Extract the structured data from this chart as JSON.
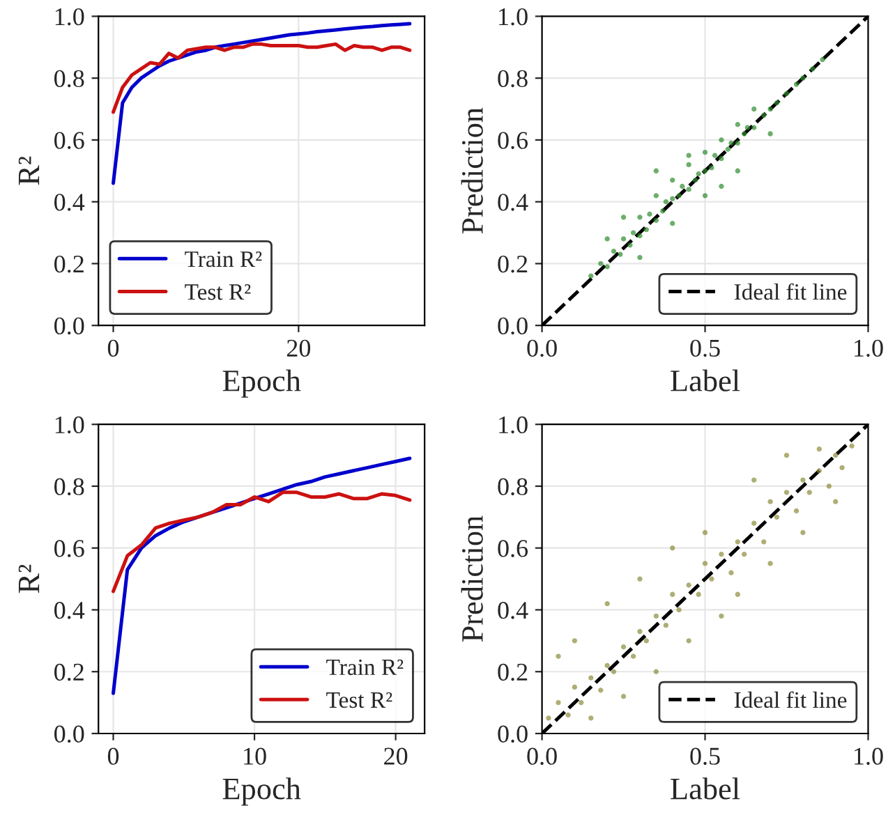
{
  "chart_data": [
    {
      "type": "line",
      "xlabel": "Epoch",
      "ylabel": "R²",
      "x": [
        0,
        1,
        2,
        3,
        4,
        5,
        6,
        7,
        8,
        9,
        10,
        11,
        12,
        13,
        14,
        15,
        16,
        17,
        18,
        19,
        20,
        21,
        22,
        23,
        24,
        25,
        26,
        27,
        28,
        29,
        30,
        31,
        32
      ],
      "series": [
        {
          "name": "Train R²",
          "color": "#0000cc",
          "values": [
            0.46,
            0.72,
            0.77,
            0.8,
            0.82,
            0.84,
            0.855,
            0.865,
            0.875,
            0.885,
            0.89,
            0.9,
            0.905,
            0.91,
            0.915,
            0.92,
            0.925,
            0.93,
            0.935,
            0.94,
            0.943,
            0.946,
            0.95,
            0.953,
            0.956,
            0.959,
            0.962,
            0.965,
            0.967,
            0.97,
            0.972,
            0.974,
            0.976
          ]
        },
        {
          "name": "Test R²",
          "color": "#cc1111",
          "values": [
            0.69,
            0.77,
            0.81,
            0.83,
            0.85,
            0.845,
            0.88,
            0.865,
            0.89,
            0.895,
            0.9,
            0.9,
            0.89,
            0.9,
            0.9,
            0.91,
            0.91,
            0.905,
            0.905,
            0.905,
            0.905,
            0.9,
            0.9,
            0.905,
            0.91,
            0.89,
            0.905,
            0.9,
            0.9,
            0.89,
            0.9,
            0.9,
            0.89
          ]
        }
      ],
      "xlim": [
        -1.6,
        33.6
      ],
      "xticks": [
        0,
        20
      ],
      "ylim": [
        0,
        1
      ],
      "yticks": [
        {
          "value": 0,
          "label": "0.0"
        },
        {
          "value": 0.2,
          "label": "0.2"
        },
        {
          "value": 0.4,
          "label": "0.4"
        },
        {
          "value": 0.6,
          "label": "0.6"
        },
        {
          "value": 0.8,
          "label": "0.8"
        },
        {
          "value": 1,
          "label": "1.0"
        }
      ],
      "grid": true,
      "legend": "bottom left",
      "marker": "none",
      "line_style": "solid"
    },
    {
      "type": "scatter",
      "xlabel": "Label",
      "ylabel": "Prediction",
      "series": [
        {
          "type": "scatter",
          "marker": "circle",
          "color": "#2e8b2e",
          "x": [
            0.15,
            0.18,
            0.2,
            0.22,
            0.24,
            0.25,
            0.27,
            0.28,
            0.3,
            0.3,
            0.32,
            0.33,
            0.35,
            0.35,
            0.37,
            0.38,
            0.4,
            0.4,
            0.42,
            0.43,
            0.45,
            0.45,
            0.47,
            0.48,
            0.5,
            0.5,
            0.52,
            0.53,
            0.55,
            0.55,
            0.57,
            0.58,
            0.6,
            0.6,
            0.62,
            0.63,
            0.65,
            0.65,
            0.68,
            0.7,
            0.72,
            0.75,
            0.78,
            0.8,
            0.83,
            0.86,
            0.2,
            0.3,
            0.25,
            0.4,
            0.45,
            0.55,
            0.6,
            0.7,
            0.35,
            0.5
          ],
          "values": [
            0.16,
            0.2,
            0.19,
            0.24,
            0.23,
            0.28,
            0.26,
            0.3,
            0.29,
            0.35,
            0.31,
            0.36,
            0.34,
            0.42,
            0.37,
            0.4,
            0.41,
            0.47,
            0.42,
            0.45,
            0.44,
            0.52,
            0.47,
            0.49,
            0.5,
            0.56,
            0.51,
            0.55,
            0.54,
            0.6,
            0.57,
            0.59,
            0.59,
            0.65,
            0.62,
            0.64,
            0.64,
            0.7,
            0.68,
            0.7,
            0.72,
            0.75,
            0.78,
            0.8,
            0.83,
            0.86,
            0.28,
            0.22,
            0.35,
            0.33,
            0.55,
            0.45,
            0.5,
            0.62,
            0.5,
            0.42
          ]
        },
        {
          "type": "line",
          "name": "Ideal fit line",
          "color": "#000000",
          "line_style": "dashed",
          "x": [
            0,
            1
          ],
          "values": [
            0,
            1
          ]
        }
      ],
      "xlim": [
        0,
        1
      ],
      "xticks": [
        {
          "value": 0,
          "label": "0.0"
        },
        {
          "value": 0.5,
          "label": "0.5"
        },
        {
          "value": 1,
          "label": "1.0"
        }
      ],
      "ylim": [
        0,
        1
      ],
      "yticks": [
        {
          "value": 0,
          "label": "0.0"
        },
        {
          "value": 0.2,
          "label": "0.2"
        },
        {
          "value": 0.4,
          "label": "0.4"
        },
        {
          "value": 0.6,
          "label": "0.6"
        },
        {
          "value": 0.8,
          "label": "0.8"
        },
        {
          "value": 1,
          "label": "1.0"
        }
      ],
      "grid": true,
      "legend": "bottom right"
    },
    {
      "type": "line",
      "xlabel": "Epoch",
      "ylabel": "R²",
      "x": [
        0,
        1,
        2,
        3,
        4,
        5,
        6,
        7,
        8,
        9,
        10,
        11,
        12,
        13,
        14,
        15,
        16,
        17,
        18,
        19,
        20,
        21
      ],
      "series": [
        {
          "name": "Train R²",
          "color": "#0000cc",
          "values": [
            0.13,
            0.53,
            0.6,
            0.64,
            0.665,
            0.685,
            0.7,
            0.715,
            0.73,
            0.745,
            0.76,
            0.775,
            0.79,
            0.805,
            0.815,
            0.83,
            0.84,
            0.85,
            0.86,
            0.87,
            0.88,
            0.89
          ]
        },
        {
          "name": "Test R²",
          "color": "#cc1111",
          "values": [
            0.46,
            0.575,
            0.61,
            0.665,
            0.68,
            0.69,
            0.7,
            0.715,
            0.74,
            0.74,
            0.765,
            0.75,
            0.78,
            0.78,
            0.765,
            0.765,
            0.775,
            0.76,
            0.76,
            0.775,
            0.77,
            0.755
          ]
        }
      ],
      "xlim": [
        -1.05,
        22.05
      ],
      "xticks": [
        0,
        10,
        20
      ],
      "ylim": [
        0,
        1
      ],
      "yticks": [
        {
          "value": 0,
          "label": "0.0"
        },
        {
          "value": 0.2,
          "label": "0.2"
        },
        {
          "value": 0.4,
          "label": "0.4"
        },
        {
          "value": 0.6,
          "label": "0.6"
        },
        {
          "value": 0.8,
          "label": "0.8"
        },
        {
          "value": 1,
          "label": "1.0"
        }
      ],
      "grid": true,
      "legend": "bottom right",
      "marker": "none",
      "line_style": "solid"
    },
    {
      "type": "scatter",
      "xlabel": "Label",
      "ylabel": "Prediction",
      "series": [
        {
          "type": "scatter",
          "marker": "circle",
          "color": "#8b8b3a",
          "x": [
            0.02,
            0.05,
            0.08,
            0.1,
            0.12,
            0.15,
            0.18,
            0.2,
            0.22,
            0.25,
            0.28,
            0.3,
            0.32,
            0.35,
            0.38,
            0.4,
            0.42,
            0.45,
            0.48,
            0.5,
            0.52,
            0.55,
            0.58,
            0.6,
            0.62,
            0.65,
            0.68,
            0.7,
            0.72,
            0.75,
            0.78,
            0.8,
            0.82,
            0.85,
            0.88,
            0.9,
            0.92,
            0.95,
            0.1,
            0.2,
            0.3,
            0.4,
            0.5,
            0.6,
            0.7,
            0.8,
            0.9,
            0.15,
            0.35,
            0.55,
            0.65,
            0.85,
            0.25,
            0.45,
            0.75,
            0.05
          ],
          "values": [
            0.05,
            0.1,
            0.06,
            0.15,
            0.1,
            0.18,
            0.14,
            0.22,
            0.2,
            0.28,
            0.25,
            0.33,
            0.3,
            0.38,
            0.35,
            0.45,
            0.4,
            0.48,
            0.45,
            0.55,
            0.5,
            0.58,
            0.52,
            0.62,
            0.58,
            0.68,
            0.62,
            0.75,
            0.7,
            0.78,
            0.72,
            0.82,
            0.78,
            0.85,
            0.8,
            0.9,
            0.86,
            0.93,
            0.3,
            0.42,
            0.5,
            0.6,
            0.65,
            0.45,
            0.55,
            0.65,
            0.75,
            0.05,
            0.2,
            0.38,
            0.82,
            0.92,
            0.12,
            0.3,
            0.9,
            0.25
          ]
        },
        {
          "type": "line",
          "name": "Ideal fit line",
          "color": "#000000",
          "line_style": "dashed",
          "x": [
            0,
            1
          ],
          "values": [
            0,
            1
          ]
        }
      ],
      "xlim": [
        0,
        1
      ],
      "xticks": [
        {
          "value": 0,
          "label": "0.0"
        },
        {
          "value": 0.5,
          "label": "0.5"
        },
        {
          "value": 1,
          "label": "1.0"
        }
      ],
      "ylim": [
        0,
        1
      ],
      "yticks": [
        {
          "value": 0,
          "label": "0.0"
        },
        {
          "value": 0.2,
          "label": "0.2"
        },
        {
          "value": 0.4,
          "label": "0.4"
        },
        {
          "value": 0.6,
          "label": "0.6"
        },
        {
          "value": 0.8,
          "label": "0.8"
        },
        {
          "value": 1,
          "label": "1.0"
        }
      ],
      "grid": true,
      "legend": "bottom right"
    }
  ]
}
